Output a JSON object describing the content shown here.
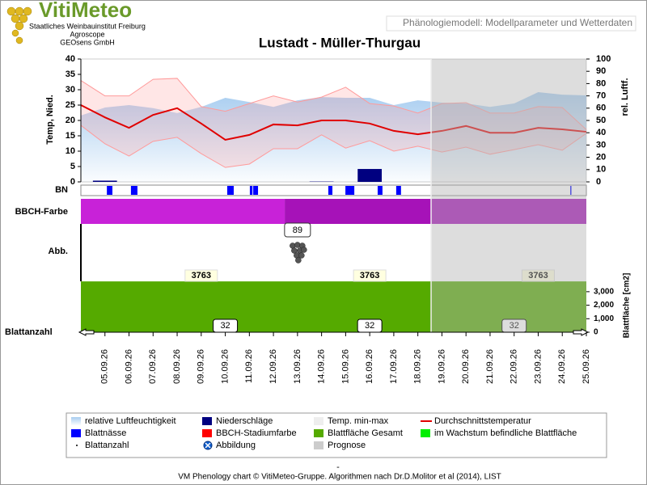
{
  "header": {
    "logo": "VitiMeteo",
    "org_lines": [
      "Staatliches Weinbauinstitut Freiburg",
      "Agroscope",
      "GEOsens GmbH"
    ],
    "tab": "Phänologiemodell: Modellparameter und Wetterdaten"
  },
  "chart_data": {
    "type": "phenology",
    "title": "Lustadt - Müller-Thurgau",
    "categories": [
      null,
      "05.09.26",
      "06.09.26",
      "07.09.26",
      "08.09.26",
      "09.09.26",
      "10.09.26",
      "11.09.26",
      "12.09.26",
      "13.09.26",
      "14.09.26",
      "15.09.26",
      "16.09.26",
      "17.09.26",
      "18.09.26",
      "19.09.26",
      "20.09.26",
      "21.09.26",
      "22.09.26",
      "23.09.26",
      "24.09.26",
      "25.09.26"
    ],
    "ylabel": "Temp, Nied.",
    "y2label": "rel. Luftf.",
    "y3label": "Blattfläche [cm2]",
    "ylim": [
      0,
      40
    ],
    "yticks": [
      0,
      5,
      10,
      15,
      20,
      25,
      30,
      35,
      40
    ],
    "y2lim": [
      0,
      100
    ],
    "y2ticks": [
      0,
      10,
      20,
      30,
      40,
      50,
      60,
      70,
      80,
      90,
      100
    ],
    "y3lim": [
      0,
      3800
    ],
    "y3ticks": [
      0,
      {
        "value": 1000,
        "label": "1,000"
      },
      {
        "value": 2000,
        "label": "2,000"
      },
      {
        "value": 3000,
        "label": "3,000"
      }
    ],
    "humidity": {
      "color": "#a8cdf0",
      "axis": "y2",
      "values": [
        54,
        60.5,
        62.5,
        60,
        56,
        61,
        68.4,
        65,
        61,
        66.4,
        69,
        68.4,
        68.4,
        62.5,
        66.4,
        64.5,
        63.8,
        61,
        63.8,
        73,
        71,
        70.4
      ]
    },
    "precipitation": {
      "color": "#000080",
      "values": [
        0,
        0.4,
        0,
        0,
        0,
        0,
        0,
        0,
        0,
        0,
        0.1,
        0,
        4.2,
        0,
        0,
        0,
        0,
        0,
        0,
        0,
        0,
        0
      ]
    },
    "temp_range": {
      "color": "#ff9a9a",
      "high": [
        33,
        28,
        28,
        33.4,
        33.7,
        24.5,
        23,
        25.5,
        28,
        26,
        27.6,
        30.8,
        25.5,
        24.7,
        22.4,
        25.5,
        25.8,
        22.4,
        22.4,
        24.5,
        24.2,
        17
      ],
      "low": [
        18.4,
        12.4,
        8.4,
        13.2,
        14.5,
        9.2,
        4.7,
        5.8,
        10.8,
        10.8,
        15.3,
        11,
        13.4,
        10,
        11.6,
        9.7,
        11.3,
        9,
        10.5,
        12.1,
        10.3,
        15.8
      ]
    },
    "temp_mean": {
      "color": "#e00000",
      "values": [
        25,
        21,
        17.6,
        21.8,
        24,
        19,
        13.7,
        15.3,
        18.7,
        18.4,
        20,
        20,
        19,
        16.6,
        15.5,
        16.6,
        18.2,
        16,
        16,
        17.6,
        17.1,
        16.3
      ]
    },
    "leaf_wetness": {
      "color": "#0000ff",
      "intervals": [
        [
          1.08,
          1.31
        ],
        [
          2.08,
          2.35
        ],
        [
          6.08,
          6.35
        ],
        [
          7.02,
          7.13
        ],
        [
          7.16,
          7.36
        ],
        [
          10.28,
          10.45
        ],
        [
          10.99,
          11.36
        ],
        [
          12.33,
          12.53
        ],
        [
          13.1,
          13.3
        ],
        [
          20.33,
          20.38
        ]
      ]
    },
    "bbch": {
      "stage": 89,
      "stage_at": 9,
      "periods": [
        {
          "start": 0,
          "end": 8.47,
          "color": "#c822d8"
        },
        {
          "start": 8.47,
          "end": 21,
          "color": "#a612b8"
        }
      ]
    },
    "leaf_area": {
      "color": "#55aa00",
      "value": 3763,
      "label_at": [
        5,
        12,
        19
      ]
    },
    "leaf_count": {
      "value": 32,
      "label_at": [
        6,
        12,
        18
      ]
    },
    "forecast_start": 14.55,
    "row_labels": [
      "BN",
      "BBCH-Farbe",
      "Abb.",
      "Blattanzahl"
    ],
    "legend": [
      {
        "name": "relative Luftfeuchtigkeit",
        "color": "#a8cdf0",
        "symbol": "area"
      },
      {
        "name": "Niederschläge",
        "color": "#000080",
        "symbol": "box"
      },
      {
        "name": "Temp. min-max",
        "color": "#eeeeee",
        "symbol": "box"
      },
      {
        "name": "Durchschnittstemperatur",
        "color": "#e00000",
        "symbol": "line"
      },
      {
        "name": "Blattnässe",
        "color": "#0000ff",
        "symbol": "box"
      },
      {
        "name": "BBCH-Stadiumfarbe",
        "color": "#ff0000",
        "symbol": "box"
      },
      {
        "name": "Blattfläche Gesamt",
        "color": "#55aa00",
        "symbol": "box"
      },
      {
        "name": "im Wachstum befindliche Blattfläche",
        "color": "#00ee00",
        "symbol": "box"
      },
      {
        "name": "Blattanzahl",
        "color": "#000000",
        "symbol": "dot"
      },
      {
        "name": "Abbildung",
        "color": "#1060d0",
        "symbol": "icon"
      },
      {
        "name": "Prognose",
        "color": "#cccccc",
        "symbol": "box"
      }
    ]
  },
  "footer": {
    "separator": "-",
    "text": "VM Phenology chart © VitiMeteo-Gruppe. Algorithmen nach Dr.D.Molitor et al (2014), LIST"
  }
}
